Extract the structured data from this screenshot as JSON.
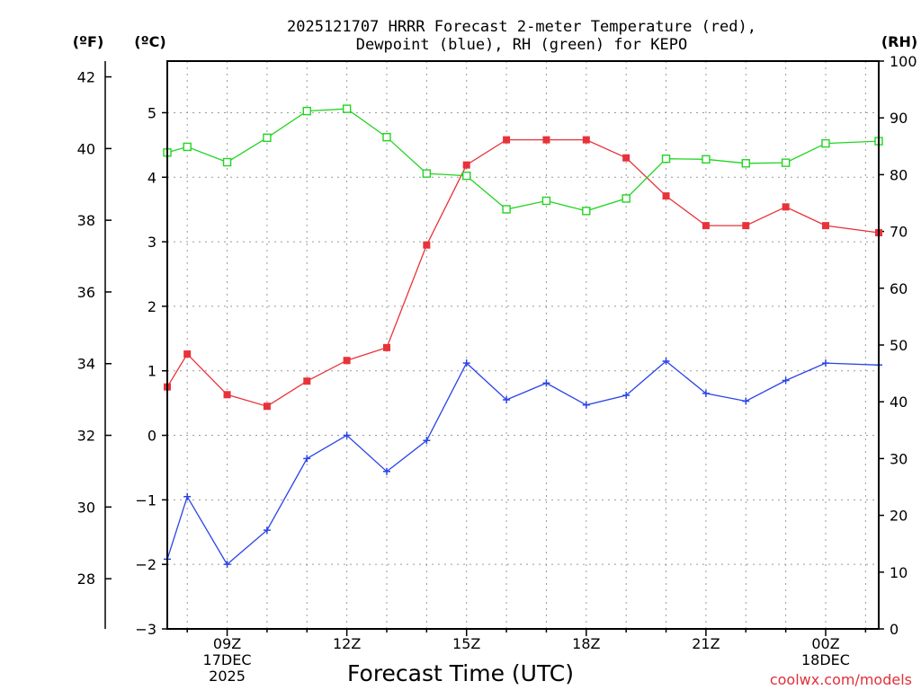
{
  "chart_data": {
    "type": "line",
    "title": [
      "2025121707 HRRR Forecast 2-meter Temperature (red),",
      "Dewpoint (blue), RH (green) for KEPO"
    ],
    "xlabel": "Forecast Time (UTC)",
    "credit": "coolwx.com/models",
    "left_outer_axis": {
      "unit": "(ºF)",
      "ticks": [
        28,
        30,
        32,
        34,
        36,
        38,
        40,
        42
      ]
    },
    "left_inner_axis": {
      "unit": "(ºC)",
      "ylim": [
        -3,
        5.8
      ],
      "ticks": [
        -3,
        -2,
        -1,
        0,
        1,
        2,
        3,
        4,
        5
      ]
    },
    "right_axis": {
      "unit": "(RH)",
      "ylim": [
        0,
        100
      ],
      "ticks": [
        0,
        10,
        20,
        30,
        40,
        50,
        60,
        70,
        80,
        90,
        100
      ]
    },
    "x_range_hours": [
      7.5,
      25.33
    ],
    "x_ticks": [
      {
        "hour": 9,
        "lines": [
          "09Z",
          "17DEC",
          "2025"
        ]
      },
      {
        "hour": 12,
        "lines": [
          "12Z"
        ]
      },
      {
        "hour": 15,
        "lines": [
          "15Z"
        ]
      },
      {
        "hour": 18,
        "lines": [
          "18Z"
        ]
      },
      {
        "hour": 21,
        "lines": [
          "21Z"
        ]
      },
      {
        "hour": 24,
        "lines": [
          "00Z",
          "18DEC"
        ]
      }
    ],
    "hours": [
      7.5,
      8,
      9,
      10,
      11,
      12,
      13,
      14,
      15,
      16,
      17,
      18,
      19,
      20,
      21,
      22,
      23,
      24,
      25.33
    ],
    "series": [
      {
        "name": "2-meter Temperature",
        "axis": "celsius",
        "color": "#e8323a",
        "marker": "filled-square",
        "values": [
          0.75,
          1.26,
          0.63,
          0.45,
          0.84,
          1.16,
          1.36,
          2.95,
          4.19,
          4.58,
          4.58,
          4.58,
          4.3,
          3.71,
          3.25,
          3.25,
          3.54,
          3.25,
          3.14
        ]
      },
      {
        "name": "Dewpoint",
        "axis": "celsius",
        "color": "#2a44e6",
        "marker": "plus",
        "values": [
          -1.92,
          -0.95,
          -2.0,
          -1.47,
          -0.36,
          0.0,
          -0.56,
          -0.08,
          1.12,
          0.55,
          0.81,
          0.47,
          0.62,
          1.15,
          0.65,
          0.53,
          0.85,
          1.12,
          1.09
        ]
      },
      {
        "name": "RH",
        "axis": "rh",
        "color": "#22d422",
        "marker": "open-square",
        "values": [
          83.9,
          84.9,
          82.2,
          86.5,
          91.2,
          91.6,
          86.6,
          80.2,
          79.8,
          73.9,
          75.4,
          73.6,
          75.8,
          82.8,
          82.7,
          82.0,
          82.1,
          85.5,
          85.9
        ]
      }
    ]
  }
}
